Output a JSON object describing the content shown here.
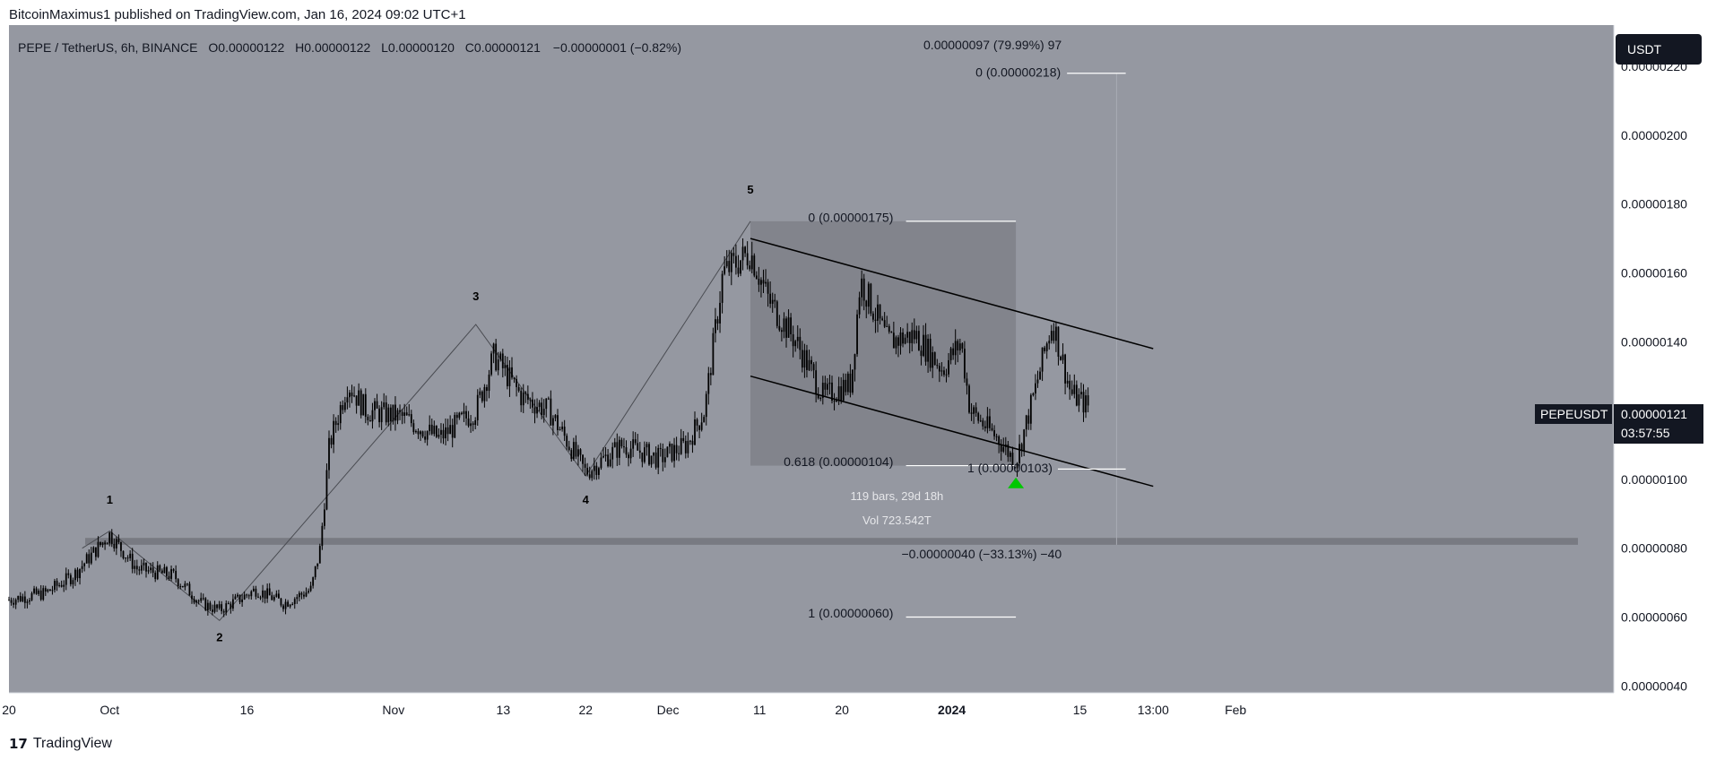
{
  "header": {
    "credit": "BitcoinMaximus1 published on TradingView.com, Jan 16, 2024 09:02 UTC+1"
  },
  "legend": {
    "symbol": "PEPE / TetherUS, 6h, BINANCE",
    "o_label": "O",
    "o_value": "0.00000122",
    "h_label": "H",
    "h_value": "0.00000122",
    "l_label": "L",
    "l_value": "0.00000120",
    "c_label": "C",
    "c_value": "0.00000121",
    "change": "−0.00000001 (−0.82%)"
  },
  "currency_button": "USDT",
  "price_tag": {
    "symbol": "PEPEUSDT",
    "price": "0.00000121",
    "countdown": "03:57:55"
  },
  "footer": {
    "brand": "TradingView",
    "logo_glyph": "17"
  },
  "colors": {
    "chart_bg": "#9598a1",
    "candle": "#000000",
    "box": "#7c7e86",
    "support": "#787a82",
    "arrow": "#00c800",
    "text": "#131722"
  },
  "chart_data": {
    "type": "candlestick",
    "y_scale": "linear",
    "ylim": [
      3.8e-07,
      2.32e-06
    ],
    "yticks": [
      "0.00000220",
      "0.00000200",
      "0.00000180",
      "0.00000160",
      "0.00000140",
      "0.00000120",
      "0.00000100",
      "0.00000080",
      "0.00000060",
      "0.00000040"
    ],
    "xticks": [
      "20",
      "Oct",
      "16",
      "Nov",
      "13",
      "22",
      "Dec",
      "11",
      "20",
      "2024",
      "15",
      "13:00",
      "Feb"
    ],
    "price_path": [
      [
        "Sep 20",
        6.5e-07
      ],
      [
        "Sep 24",
        6.7e-07
      ],
      [
        "Sep 27",
        7.2e-07
      ],
      [
        "Oct 1",
        8.4e-07
      ],
      [
        "Oct 4",
        7.4e-07
      ],
      [
        "Oct 8",
        7.2e-07
      ],
      [
        "Oct 11",
        6.4e-07
      ],
      [
        "Oct 13",
        6.2e-07
      ],
      [
        "Oct 17",
        6.8e-07
      ],
      [
        "Oct 20",
        6.4e-07
      ],
      [
        "Oct 23",
        6.8e-07
      ],
      [
        "Oct 24",
        8e-07
      ],
      [
        "Oct 25",
        1.1e-06
      ],
      [
        "Oct 27",
        1.28e-06
      ],
      [
        "Oct 29",
        1.2e-06
      ],
      [
        "Nov 2",
        1.18e-06
      ],
      [
        "Nov 6",
        1.12e-06
      ],
      [
        "Nov 10",
        1.2e-06
      ],
      [
        "Nov 12",
        1.36e-06
      ],
      [
        "Nov 15",
        1.24e-06
      ],
      [
        "Nov 18",
        1.2e-06
      ],
      [
        "Nov 22",
        1.02e-06
      ],
      [
        "Nov 26",
        1.1e-06
      ],
      [
        "Nov 30",
        1.06e-06
      ],
      [
        "Dec 3",
        1.1e-06
      ],
      [
        "Dec 5",
        1.2e-06
      ],
      [
        "Dec 7",
        1.6e-06
      ],
      [
        "Dec 10",
        1.66e-06
      ],
      [
        "Dec 12",
        1.52e-06
      ],
      [
        "Dec 15",
        1.4e-06
      ],
      [
        "Dec 18",
        1.24e-06
      ],
      [
        "Dec 21",
        1.28e-06
      ],
      [
        "Dec 22",
        1.58e-06
      ],
      [
        "Dec 25",
        1.4e-06
      ],
      [
        "Dec 28",
        1.42e-06
      ],
      [
        "Dec 31",
        1.32e-06
      ],
      [
        "Jan 2",
        1.4e-06
      ],
      [
        "Jan 3",
        1.2e-06
      ],
      [
        "Jan 6",
        1.12e-06
      ],
      [
        "Jan 8",
        1.05e-06
      ],
      [
        "Jan 10",
        1.25e-06
      ],
      [
        "Jan 12",
        1.46e-06
      ],
      [
        "Jan 14",
        1.25e-06
      ],
      [
        "Jan 16",
        1.21e-06
      ]
    ],
    "wave_labels": [
      "1",
      "2",
      "3",
      "4",
      "5"
    ],
    "fib_labels": {
      "top_fib_zero": "0 (0.00000175)",
      "fib_618": "0.618 (0.00000104)",
      "fib_one_low": "1 (0.00000060)",
      "range_bars": "119 bars, 29d 18h",
      "range_vol": "Vol 723.542T",
      "target_zero": "0 (0.00000218)",
      "target_up": "0.00000097 (79.99%) 97",
      "target_one": "1 (0.00000103)",
      "target_down": "−0.00000040 (−33.13%) −40"
    },
    "support_zone": [
      8.1e-07,
      8.3e-07
    ],
    "channel_top": [
      [
        "Dec 10",
        1.7e-06
      ],
      [
        "Jan 23",
        1.38e-06
      ]
    ],
    "channel_bottom": [
      [
        "Dec 10",
        1.3e-06
      ],
      [
        "Jan 23",
        9.8e-07
      ]
    ],
    "grid": false
  }
}
